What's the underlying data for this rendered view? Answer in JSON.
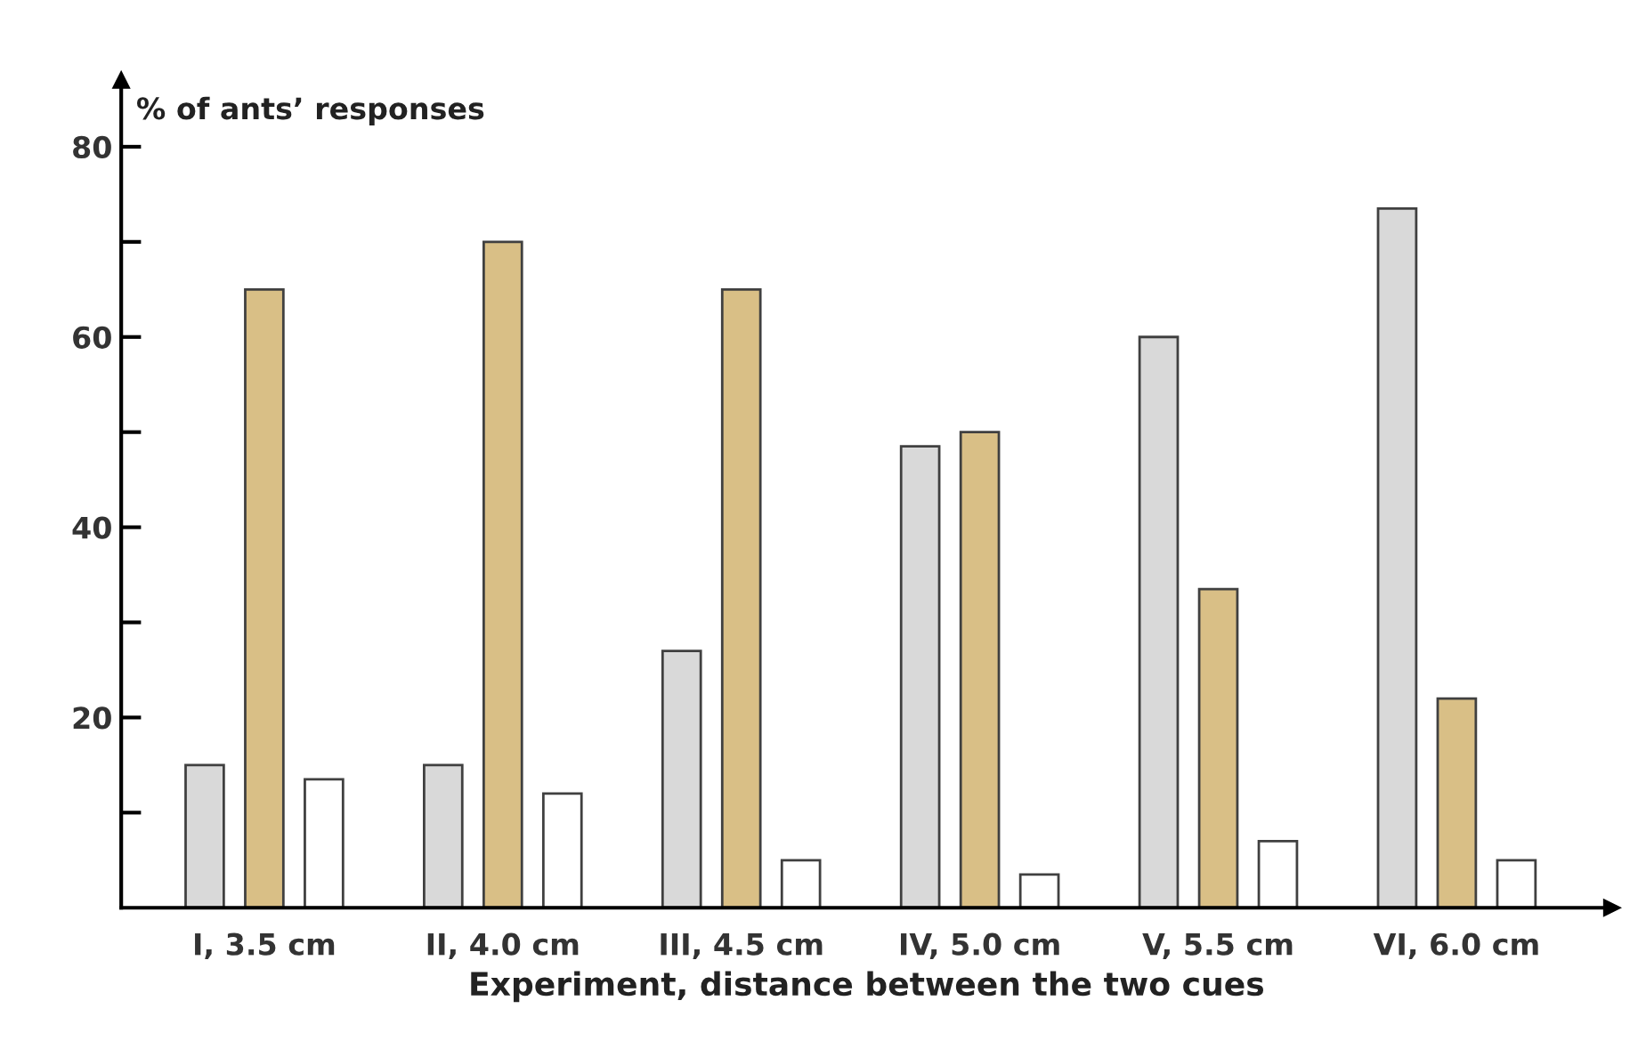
{
  "chart_data": {
    "type": "bar",
    "ylabel": "% of ants’ responses",
    "xlabel": "Experiment, distance between the two cues",
    "categories": [
      "I, 3.5 cm",
      "II, 4.0 cm",
      "III, 4.5 cm",
      "IV, 5.0 cm",
      "V, 5.5 cm",
      "VI, 6.0 cm"
    ],
    "series": [
      {
        "color": "#d9d9d9",
        "values": [
          15,
          15,
          27,
          48.5,
          60,
          73.5
        ]
      },
      {
        "color": "#d9bf86",
        "values": [
          65,
          70,
          65,
          50,
          33.5,
          22
        ]
      },
      {
        "color": "#ffffff",
        "values": [
          13.5,
          12,
          5,
          3.5,
          7,
          5
        ]
      }
    ],
    "ylim": [
      0,
      87
    ],
    "yticks": [
      {
        "value": 10,
        "label": null
      },
      20,
      {
        "value": 30,
        "label": null
      },
      40,
      {
        "value": 50,
        "label": null
      },
      60,
      {
        "value": 70,
        "label": null
      },
      80
    ],
    "grid": false,
    "legend": false
  }
}
